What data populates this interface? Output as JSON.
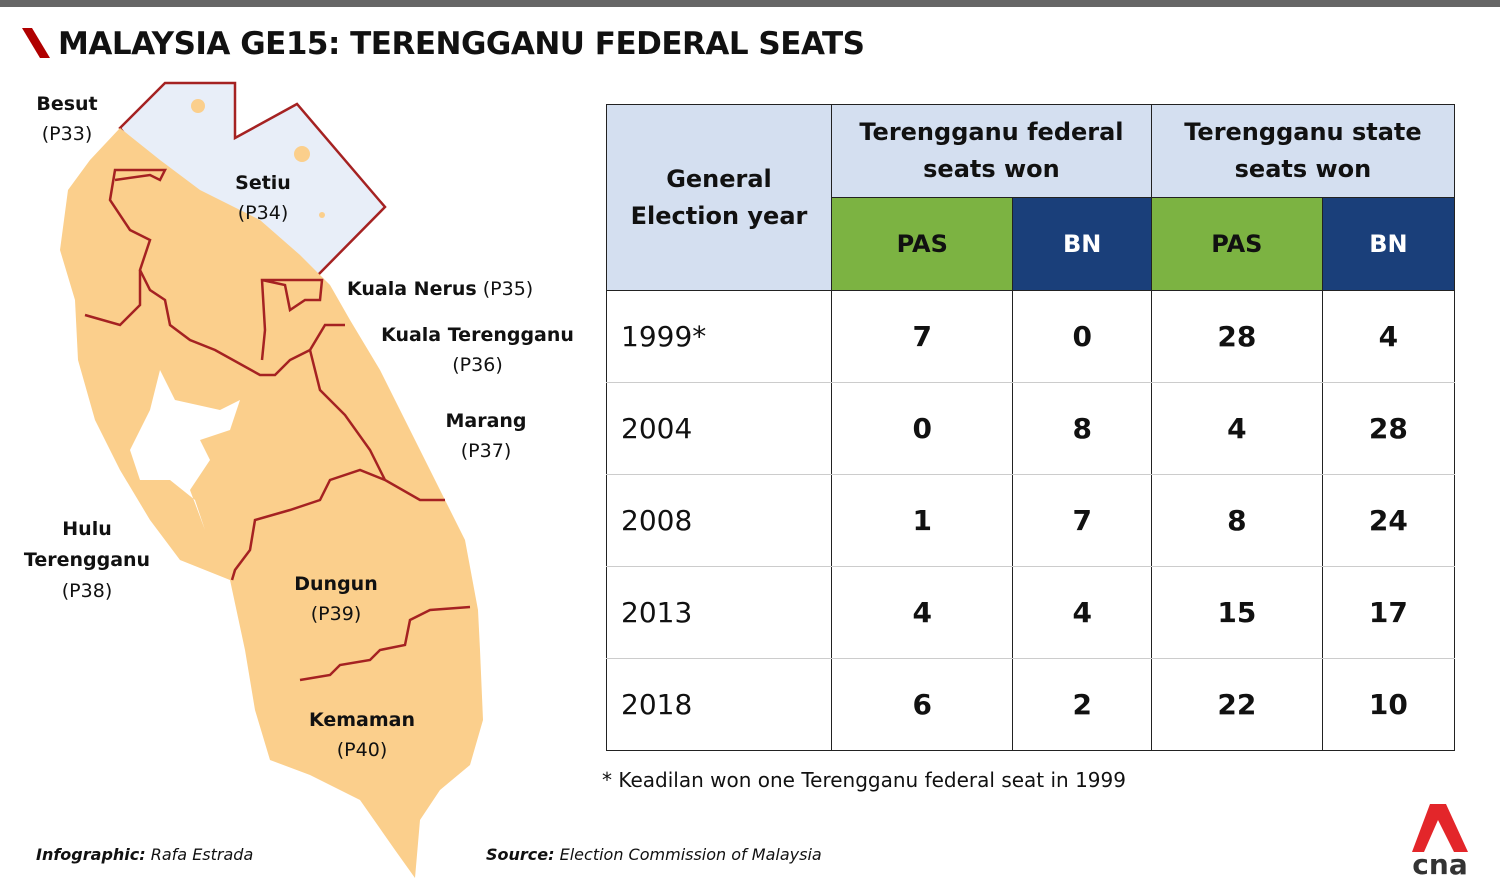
{
  "title": "MALAYSIA GE15: TERENGGANU FEDERAL SEATS",
  "map_labels": [
    {
      "name": "Besut",
      "code": "(P33)"
    },
    {
      "name": "Setiu",
      "code": "(P34)"
    },
    {
      "name": "Kuala Nerus",
      "code": "(P35)"
    },
    {
      "name": "Kuala Terengganu",
      "code": "(P36)"
    },
    {
      "name": "Marang",
      "code": "(P37)"
    },
    {
      "name": "Hulu Terengganu",
      "code": "(P38)"
    },
    {
      "name": "Dungun",
      "code": "(P39)"
    },
    {
      "name": "Kemaman",
      "code": "(P40)"
    }
  ],
  "table": {
    "col_year": "General Election year",
    "group_federal": "Terengganu federal seats won",
    "group_state": "Terengganu state seats won",
    "sub": [
      "PAS",
      "BN",
      "PAS",
      "BN"
    ],
    "rows": [
      [
        "1999*",
        "7",
        "0",
        "28",
        "4"
      ],
      [
        "2004",
        "0",
        "8",
        "4",
        "28"
      ],
      [
        "2008",
        "1",
        "7",
        "8",
        "24"
      ],
      [
        "2013",
        "4",
        "4",
        "15",
        "17"
      ],
      [
        "2018",
        "6",
        "2",
        "22",
        "10"
      ]
    ]
  },
  "colors": {
    "pas": "#7cb342",
    "bn": "#1a3f7a",
    "header": "#d4dff0",
    "accent": "#b00000"
  },
  "note": "* Keadilan won one Terengganu federal seat in 1999",
  "credit": {
    "infographic_label": "Infographic:",
    "infographic": "Rafa Estrada",
    "source_label": "Source:",
    "source": "Election Commission of Malaysia"
  },
  "logo": "cna"
}
